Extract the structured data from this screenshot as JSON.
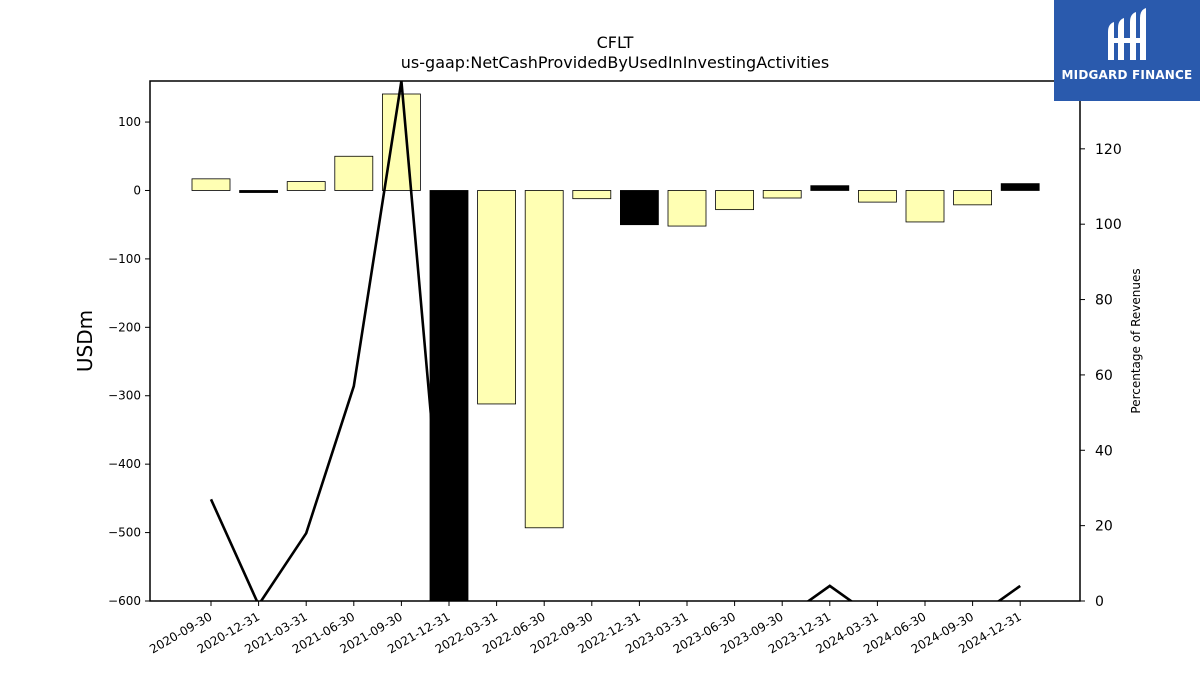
{
  "chart_data": {
    "type": "bar",
    "title": "CFLT",
    "subtitle": "us-gaap:NetCashProvidedByUsedInInvestingActivities",
    "ylabel": "USDm",
    "y2label": "Percentage of Revenues",
    "ylim": [
      -600,
      160
    ],
    "y2lim": [
      0,
      138
    ],
    "yticks": [
      100,
      0,
      -100,
      -200,
      -300,
      -400,
      -500,
      -600
    ],
    "y2ticks": [
      120,
      100,
      80,
      60,
      40,
      20,
      0
    ],
    "categories": [
      "2020-09-30",
      "2020-12-31",
      "2021-03-31",
      "2021-06-30",
      "2021-09-30",
      "2021-12-31",
      "2022-03-31",
      "2022-06-30",
      "2022-09-30",
      "2022-12-31",
      "2023-03-31",
      "2023-06-30",
      "2023-09-30",
      "2023-12-31",
      "2024-03-31",
      "2024-06-30",
      "2024-09-30",
      "2024-12-31"
    ],
    "series": [
      {
        "type": "bar",
        "values": [
          17,
          -3,
          13,
          50,
          141,
          -620,
          -312,
          -493,
          -12,
          -50,
          -52,
          -28,
          -11,
          7,
          -17,
          -46,
          -21,
          10
        ],
        "colors": [
          "#ffffb3",
          "#000000",
          "#ffffb3",
          "#ffffb3",
          "#ffffb3",
          "#000000",
          "#ffffb3",
          "#ffffb3",
          "#ffffb3",
          "#000000",
          "#ffffb3",
          "#ffffb3",
          "#ffffb3",
          "#000000",
          "#ffffb3",
          "#ffffb3",
          "#ffffb3",
          "#000000"
        ]
      },
      {
        "type": "line",
        "axis": "right",
        "values": [
          27,
          -1,
          18,
          57,
          138,
          -5,
          -5,
          -5,
          -5,
          -5,
          -5,
          -5,
          -5,
          4,
          -5,
          -5,
          -5,
          4
        ]
      }
    ]
  },
  "logo": {
    "text": "MIDGARD FINANCE",
    "color": "#2a5aad"
  }
}
